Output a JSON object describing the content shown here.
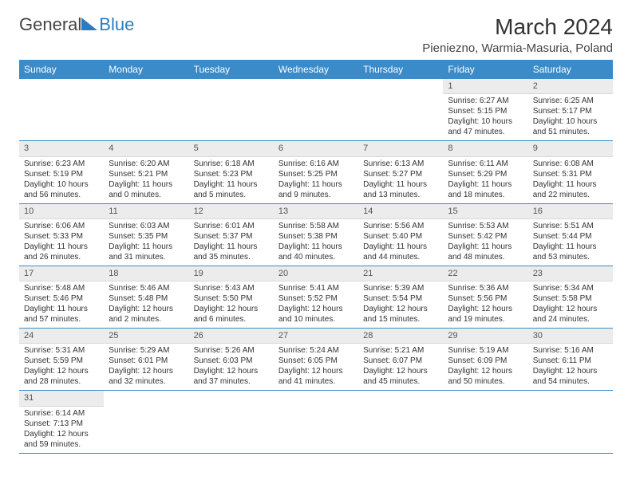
{
  "logo": {
    "text1": "General",
    "text2": "Blue"
  },
  "title": "March 2024",
  "location": "Pieniezno, Warmia-Masuria, Poland",
  "colors": {
    "header_bg": "#3a8bc9",
    "header_fg": "#ffffff",
    "cell_border": "#3a8bc9",
    "daynum_bg": "#ececec"
  },
  "day_headers": [
    "Sunday",
    "Monday",
    "Tuesday",
    "Wednesday",
    "Thursday",
    "Friday",
    "Saturday"
  ],
  "weeks": [
    [
      null,
      null,
      null,
      null,
      null,
      {
        "n": "1",
        "sr": "Sunrise: 6:27 AM",
        "ss": "Sunset: 5:15 PM",
        "d1": "Daylight: 10 hours",
        "d2": "and 47 minutes."
      },
      {
        "n": "2",
        "sr": "Sunrise: 6:25 AM",
        "ss": "Sunset: 5:17 PM",
        "d1": "Daylight: 10 hours",
        "d2": "and 51 minutes."
      }
    ],
    [
      {
        "n": "3",
        "sr": "Sunrise: 6:23 AM",
        "ss": "Sunset: 5:19 PM",
        "d1": "Daylight: 10 hours",
        "d2": "and 56 minutes."
      },
      {
        "n": "4",
        "sr": "Sunrise: 6:20 AM",
        "ss": "Sunset: 5:21 PM",
        "d1": "Daylight: 11 hours",
        "d2": "and 0 minutes."
      },
      {
        "n": "5",
        "sr": "Sunrise: 6:18 AM",
        "ss": "Sunset: 5:23 PM",
        "d1": "Daylight: 11 hours",
        "d2": "and 5 minutes."
      },
      {
        "n": "6",
        "sr": "Sunrise: 6:16 AM",
        "ss": "Sunset: 5:25 PM",
        "d1": "Daylight: 11 hours",
        "d2": "and 9 minutes."
      },
      {
        "n": "7",
        "sr": "Sunrise: 6:13 AM",
        "ss": "Sunset: 5:27 PM",
        "d1": "Daylight: 11 hours",
        "d2": "and 13 minutes."
      },
      {
        "n": "8",
        "sr": "Sunrise: 6:11 AM",
        "ss": "Sunset: 5:29 PM",
        "d1": "Daylight: 11 hours",
        "d2": "and 18 minutes."
      },
      {
        "n": "9",
        "sr": "Sunrise: 6:08 AM",
        "ss": "Sunset: 5:31 PM",
        "d1": "Daylight: 11 hours",
        "d2": "and 22 minutes."
      }
    ],
    [
      {
        "n": "10",
        "sr": "Sunrise: 6:06 AM",
        "ss": "Sunset: 5:33 PM",
        "d1": "Daylight: 11 hours",
        "d2": "and 26 minutes."
      },
      {
        "n": "11",
        "sr": "Sunrise: 6:03 AM",
        "ss": "Sunset: 5:35 PM",
        "d1": "Daylight: 11 hours",
        "d2": "and 31 minutes."
      },
      {
        "n": "12",
        "sr": "Sunrise: 6:01 AM",
        "ss": "Sunset: 5:37 PM",
        "d1": "Daylight: 11 hours",
        "d2": "and 35 minutes."
      },
      {
        "n": "13",
        "sr": "Sunrise: 5:58 AM",
        "ss": "Sunset: 5:38 PM",
        "d1": "Daylight: 11 hours",
        "d2": "and 40 minutes."
      },
      {
        "n": "14",
        "sr": "Sunrise: 5:56 AM",
        "ss": "Sunset: 5:40 PM",
        "d1": "Daylight: 11 hours",
        "d2": "and 44 minutes."
      },
      {
        "n": "15",
        "sr": "Sunrise: 5:53 AM",
        "ss": "Sunset: 5:42 PM",
        "d1": "Daylight: 11 hours",
        "d2": "and 48 minutes."
      },
      {
        "n": "16",
        "sr": "Sunrise: 5:51 AM",
        "ss": "Sunset: 5:44 PM",
        "d1": "Daylight: 11 hours",
        "d2": "and 53 minutes."
      }
    ],
    [
      {
        "n": "17",
        "sr": "Sunrise: 5:48 AM",
        "ss": "Sunset: 5:46 PM",
        "d1": "Daylight: 11 hours",
        "d2": "and 57 minutes."
      },
      {
        "n": "18",
        "sr": "Sunrise: 5:46 AM",
        "ss": "Sunset: 5:48 PM",
        "d1": "Daylight: 12 hours",
        "d2": "and 2 minutes."
      },
      {
        "n": "19",
        "sr": "Sunrise: 5:43 AM",
        "ss": "Sunset: 5:50 PM",
        "d1": "Daylight: 12 hours",
        "d2": "and 6 minutes."
      },
      {
        "n": "20",
        "sr": "Sunrise: 5:41 AM",
        "ss": "Sunset: 5:52 PM",
        "d1": "Daylight: 12 hours",
        "d2": "and 10 minutes."
      },
      {
        "n": "21",
        "sr": "Sunrise: 5:39 AM",
        "ss": "Sunset: 5:54 PM",
        "d1": "Daylight: 12 hours",
        "d2": "and 15 minutes."
      },
      {
        "n": "22",
        "sr": "Sunrise: 5:36 AM",
        "ss": "Sunset: 5:56 PM",
        "d1": "Daylight: 12 hours",
        "d2": "and 19 minutes."
      },
      {
        "n": "23",
        "sr": "Sunrise: 5:34 AM",
        "ss": "Sunset: 5:58 PM",
        "d1": "Daylight: 12 hours",
        "d2": "and 24 minutes."
      }
    ],
    [
      {
        "n": "24",
        "sr": "Sunrise: 5:31 AM",
        "ss": "Sunset: 5:59 PM",
        "d1": "Daylight: 12 hours",
        "d2": "and 28 minutes."
      },
      {
        "n": "25",
        "sr": "Sunrise: 5:29 AM",
        "ss": "Sunset: 6:01 PM",
        "d1": "Daylight: 12 hours",
        "d2": "and 32 minutes."
      },
      {
        "n": "26",
        "sr": "Sunrise: 5:26 AM",
        "ss": "Sunset: 6:03 PM",
        "d1": "Daylight: 12 hours",
        "d2": "and 37 minutes."
      },
      {
        "n": "27",
        "sr": "Sunrise: 5:24 AM",
        "ss": "Sunset: 6:05 PM",
        "d1": "Daylight: 12 hours",
        "d2": "and 41 minutes."
      },
      {
        "n": "28",
        "sr": "Sunrise: 5:21 AM",
        "ss": "Sunset: 6:07 PM",
        "d1": "Daylight: 12 hours",
        "d2": "and 45 minutes."
      },
      {
        "n": "29",
        "sr": "Sunrise: 5:19 AM",
        "ss": "Sunset: 6:09 PM",
        "d1": "Daylight: 12 hours",
        "d2": "and 50 minutes."
      },
      {
        "n": "30",
        "sr": "Sunrise: 5:16 AM",
        "ss": "Sunset: 6:11 PM",
        "d1": "Daylight: 12 hours",
        "d2": "and 54 minutes."
      }
    ],
    [
      {
        "n": "31",
        "sr": "Sunrise: 6:14 AM",
        "ss": "Sunset: 7:13 PM",
        "d1": "Daylight: 12 hours",
        "d2": "and 59 minutes."
      },
      null,
      null,
      null,
      null,
      null,
      null
    ]
  ]
}
